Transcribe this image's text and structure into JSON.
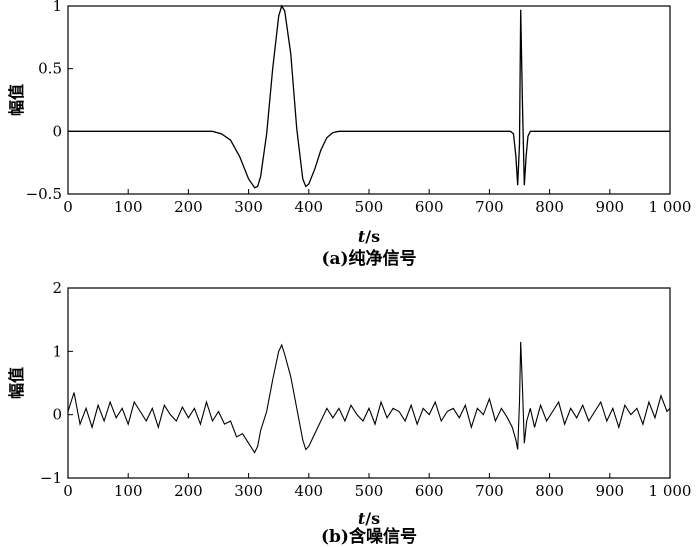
{
  "chart_data": [
    {
      "id": "a",
      "type": "line",
      "caption": "(a)纯净信号",
      "xlabel_italic": "t",
      "xlabel_unit": "/s",
      "ylabel": "幅值",
      "xlim": [
        0,
        1000
      ],
      "ylim": [
        -0.5,
        1
      ],
      "xticks": [
        0,
        100,
        200,
        300,
        400,
        500,
        600,
        700,
        800,
        900,
        1000
      ],
      "xtick_labels": [
        "0",
        "100",
        "200",
        "300",
        "400",
        "500",
        "600",
        "700",
        "800",
        "900",
        "1 000"
      ],
      "yticks": [
        -0.5,
        0,
        0.5,
        1
      ],
      "ytick_labels": [
        "−0.5",
        "0",
        "0.5",
        "1"
      ],
      "series": [
        {
          "x": [
            0,
            240,
            255,
            270,
            285,
            300,
            310,
            315,
            320,
            330,
            340,
            350,
            355,
            360,
            370,
            380,
            390,
            395,
            400,
            410,
            420,
            430,
            440,
            450,
            460,
            735,
            740,
            744,
            747,
            750,
            752,
            755,
            758,
            761,
            764,
            768,
            772,
            1000
          ],
          "y": [
            0,
            0,
            -0.02,
            -0.07,
            -0.2,
            -0.38,
            -0.45,
            -0.44,
            -0.36,
            -0.02,
            0.5,
            0.92,
            1.0,
            0.96,
            0.62,
            0.02,
            -0.38,
            -0.44,
            -0.42,
            -0.3,
            -0.15,
            -0.05,
            -0.01,
            0,
            0,
            0,
            -0.02,
            -0.2,
            -0.43,
            -0.1,
            0.97,
            0.2,
            -0.43,
            -0.2,
            -0.04,
            0,
            0,
            0
          ]
        }
      ]
    },
    {
      "id": "b",
      "type": "line",
      "caption": "(b)含噪信号",
      "xlabel_italic": "t",
      "xlabel_unit": "/s",
      "ylabel": "幅值",
      "xlim": [
        0,
        1000
      ],
      "ylim": [
        -1,
        2
      ],
      "xticks": [
        0,
        100,
        200,
        300,
        400,
        500,
        600,
        700,
        800,
        900,
        1000
      ],
      "xtick_labels": [
        "0",
        "100",
        "200",
        "300",
        "400",
        "500",
        "600",
        "700",
        "800",
        "900",
        "1 000"
      ],
      "yticks": [
        -1,
        0,
        1,
        2
      ],
      "ytick_labels": [
        "−1",
        "0",
        "1",
        "2"
      ],
      "series": [
        {
          "x": [
            0,
            10,
            20,
            30,
            40,
            50,
            60,
            70,
            80,
            90,
            100,
            110,
            120,
            130,
            140,
            150,
            160,
            170,
            180,
            190,
            200,
            210,
            220,
            230,
            240,
            250,
            260,
            270,
            280,
            290,
            300,
            310,
            315,
            320,
            330,
            340,
            350,
            355,
            360,
            370,
            380,
            390,
            395,
            400,
            410,
            420,
            430,
            440,
            450,
            460,
            470,
            480,
            490,
            500,
            510,
            520,
            530,
            540,
            550,
            560,
            570,
            580,
            590,
            600,
            610,
            620,
            630,
            640,
            650,
            660,
            670,
            680,
            690,
            700,
            710,
            720,
            730,
            738,
            744,
            747,
            750,
            752,
            755,
            758,
            762,
            768,
            775,
            785,
            795,
            805,
            815,
            825,
            835,
            845,
            855,
            865,
            875,
            885,
            895,
            905,
            915,
            925,
            935,
            945,
            955,
            965,
            975,
            985,
            995,
            1000
          ],
          "y": [
            0.05,
            0.35,
            -0.15,
            0.1,
            -0.2,
            0.15,
            -0.1,
            0.2,
            -0.05,
            0.1,
            -0.15,
            0.2,
            0.05,
            -0.1,
            0.1,
            -0.2,
            0.15,
            0.0,
            -0.1,
            0.12,
            -0.05,
            0.1,
            -0.15,
            0.2,
            -0.1,
            0.05,
            -0.15,
            -0.1,
            -0.35,
            -0.3,
            -0.45,
            -0.6,
            -0.5,
            -0.25,
            0.05,
            0.55,
            1.0,
            1.1,
            0.95,
            0.6,
            0.1,
            -0.4,
            -0.55,
            -0.5,
            -0.3,
            -0.1,
            0.1,
            -0.05,
            0.1,
            -0.1,
            0.15,
            0.0,
            -0.1,
            0.1,
            -0.15,
            0.2,
            -0.05,
            0.1,
            0.05,
            -0.1,
            0.15,
            -0.15,
            0.1,
            0.0,
            0.2,
            -0.1,
            0.05,
            0.1,
            -0.05,
            0.15,
            -0.2,
            0.1,
            0.0,
            0.25,
            -0.1,
            0.1,
            -0.05,
            -0.2,
            -0.4,
            -0.55,
            0.2,
            1.15,
            0.4,
            -0.45,
            -0.1,
            0.1,
            -0.2,
            0.15,
            -0.1,
            0.05,
            0.2,
            -0.15,
            0.1,
            -0.05,
            0.15,
            -0.1,
            0.05,
            0.2,
            -0.1,
            0.1,
            -0.2,
            0.15,
            0.0,
            0.1,
            -0.15,
            0.2,
            -0.05,
            0.3,
            0.05,
            0.1
          ]
        }
      ]
    }
  ]
}
